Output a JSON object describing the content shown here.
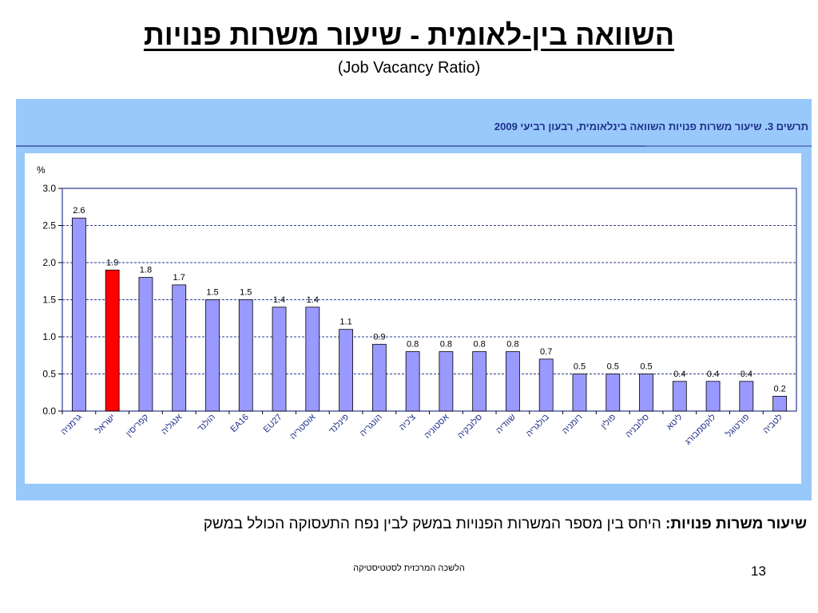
{
  "slide": {
    "title": "השוואה בין-לאומית - שיעור משרות פנויות",
    "subtitle": "(Job Vacancy Ratio)",
    "definition_term": "שיעור משרות פנויות:",
    "definition_text": " היחס בין מספר המשרות הפנויות במשק לבין נפח התעסוקה הכולל במשק",
    "footer_org": "הלשכה המרכזית לסטטיסטיקה",
    "page_number": "13"
  },
  "chart_data": {
    "type": "bar",
    "title": "תרשים 3. שיעור משרות פנויות השוואה בינלאומית,  רבעון רביעי 2009",
    "ylabel": "%",
    "xlabel": "",
    "ylim": [
      0,
      3
    ],
    "yticks": [
      "0.0",
      "0.5",
      "1.0",
      "1.5",
      "2.0",
      "2.5",
      "3.0"
    ],
    "grid": true,
    "categories": [
      "גרמניה",
      "ישראל",
      "קפריסין",
      "אנגליה",
      "הולנד",
      "EA16",
      "EU27",
      "אוסטריה",
      "פינלנד",
      "הונגריה",
      "צ'כיה",
      "אסטוניה",
      "סלובקיה",
      "שוודיה",
      "בולגריה",
      "רומניה",
      "פולין",
      "סלובניה",
      "ליטא",
      "לוקסמבורג",
      "פורטוגל",
      "לטביה"
    ],
    "values": [
      2.6,
      1.9,
      1.8,
      1.7,
      1.5,
      1.5,
      1.4,
      1.4,
      1.1,
      0.9,
      0.8,
      0.8,
      0.8,
      0.8,
      0.7,
      0.5,
      0.5,
      0.5,
      0.4,
      0.4,
      0.4,
      0.2
    ],
    "highlight_category": "ישראל",
    "colors": {
      "bar": "#9999ff",
      "bar_highlight": "#ff0000",
      "axis_labels": "#1f2f8a",
      "frame": "#99c9fb",
      "gridline": "#2b3a8f"
    }
  }
}
